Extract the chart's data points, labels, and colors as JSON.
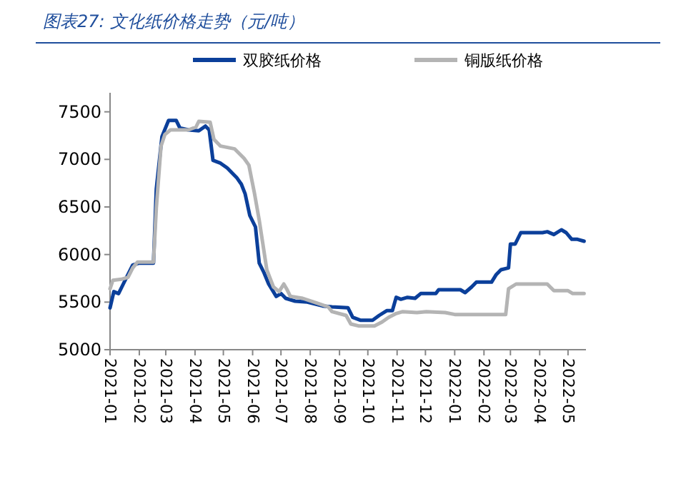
{
  "chart_data": {
    "type": "line",
    "title": "图表27: 文化纸价格走势（元/吨）",
    "legend": "top",
    "grid": false,
    "xlim": [
      "2021-01-01",
      "2022-05-20"
    ],
    "xticks": [
      "2021-01",
      "2021-02",
      "2021-03",
      "2021-04",
      "2021-05",
      "2021-06",
      "2021-07",
      "2021-08",
      "2021-09",
      "2021-10",
      "2021-11",
      "2021-12",
      "2022-01",
      "2022-02",
      "2022-03",
      "2022-04",
      "2022-05"
    ],
    "ylim": [
      5000,
      7700
    ],
    "yticks": [
      5000,
      5500,
      6000,
      6500,
      7000,
      7500
    ],
    "series": [
      {
        "name": "双胶纸价格",
        "color": "#0b3f9a",
        "x": [
          "2021-01-01",
          "2021-01-05",
          "2021-01-10",
          "2021-01-15",
          "2021-01-20",
          "2021-01-25",
          "2021-02-01",
          "2021-02-16",
          "2021-02-19",
          "2021-02-25",
          "2021-03-04",
          "2021-03-12",
          "2021-03-16",
          "2021-03-25",
          "2021-04-05",
          "2021-04-12",
          "2021-04-16",
          "2021-04-20",
          "2021-04-28",
          "2021-05-05",
          "2021-05-15",
          "2021-05-20",
          "2021-05-24",
          "2021-05-29",
          "2021-06-04",
          "2021-06-08",
          "2021-06-13",
          "2021-06-18",
          "2021-06-26",
          "2021-07-01",
          "2021-07-06",
          "2021-07-16",
          "2021-07-29",
          "2021-08-14",
          "2021-08-24",
          "2021-09-10",
          "2021-09-15",
          "2021-09-23",
          "2021-10-06",
          "2021-10-13",
          "2021-10-21",
          "2021-10-27",
          "2021-10-31",
          "2021-11-05",
          "2021-11-12",
          "2021-11-20",
          "2021-11-26",
          "2021-12-12",
          "2021-12-15",
          "2022-01-07",
          "2022-01-12",
          "2022-01-19",
          "2022-01-24",
          "2022-02-09",
          "2022-02-14",
          "2022-02-19",
          "2022-02-27",
          "2022-03-01",
          "2022-03-06",
          "2022-03-12",
          "2022-04-04",
          "2022-04-09",
          "2022-04-16",
          "2022-04-24",
          "2022-04-29",
          "2022-05-05",
          "2022-05-11",
          "2022-05-18"
        ],
        "values": [
          5440,
          5610,
          5590,
          5690,
          5790,
          5890,
          5910,
          5910,
          6690,
          7240,
          7410,
          7410,
          7330,
          7310,
          7300,
          7350,
          7310,
          6990,
          6960,
          6910,
          6810,
          6740,
          6640,
          6410,
          6290,
          5910,
          5810,
          5690,
          5560,
          5590,
          5540,
          5510,
          5500,
          5460,
          5450,
          5440,
          5340,
          5310,
          5310,
          5360,
          5410,
          5410,
          5550,
          5530,
          5550,
          5540,
          5590,
          5590,
          5630,
          5630,
          5600,
          5660,
          5710,
          5710,
          5790,
          5840,
          5860,
          6110,
          6110,
          6230,
          6230,
          6240,
          6210,
          6260,
          6230,
          6160,
          6160,
          6140
        ]
      },
      {
        "name": "铜版纸价格",
        "color": "#b4b4b4",
        "x": [
          "2021-01-01",
          "2021-01-04",
          "2021-01-13",
          "2021-01-20",
          "2021-01-25",
          "2021-01-30",
          "2021-02-16",
          "2021-02-19",
          "2021-02-24",
          "2021-02-28",
          "2021-03-06",
          "2021-03-25",
          "2021-04-02",
          "2021-04-05",
          "2021-04-17",
          "2021-04-21",
          "2021-04-28",
          "2021-05-13",
          "2021-05-23",
          "2021-05-28",
          "2021-06-03",
          "2021-06-08",
          "2021-06-16",
          "2021-06-23",
          "2021-06-29",
          "2021-07-04",
          "2021-07-07",
          "2021-07-11",
          "2021-07-24",
          "2021-08-08",
          "2021-08-20",
          "2021-08-24",
          "2021-09-08",
          "2021-09-13",
          "2021-09-21",
          "2021-10-08",
          "2021-10-16",
          "2021-10-23",
          "2021-10-31",
          "2021-11-07",
          "2021-11-22",
          "2021-12-02",
          "2021-12-22",
          "2022-01-01",
          "2022-02-24",
          "2022-02-27",
          "2022-03-07",
          "2022-04-09",
          "2022-04-16",
          "2022-05-01",
          "2022-05-06",
          "2022-05-18"
        ],
        "values": [
          5640,
          5730,
          5740,
          5760,
          5860,
          5920,
          5920,
          6490,
          7140,
          7260,
          7310,
          7310,
          7340,
          7400,
          7390,
          7210,
          7140,
          7110,
          7010,
          6940,
          6640,
          6360,
          5840,
          5660,
          5610,
          5690,
          5640,
          5560,
          5540,
          5490,
          5450,
          5400,
          5360,
          5270,
          5250,
          5250,
          5290,
          5340,
          5380,
          5400,
          5390,
          5400,
          5390,
          5370,
          5370,
          5640,
          5690,
          5690,
          5620,
          5620,
          5590,
          5590
        ]
      }
    ]
  }
}
